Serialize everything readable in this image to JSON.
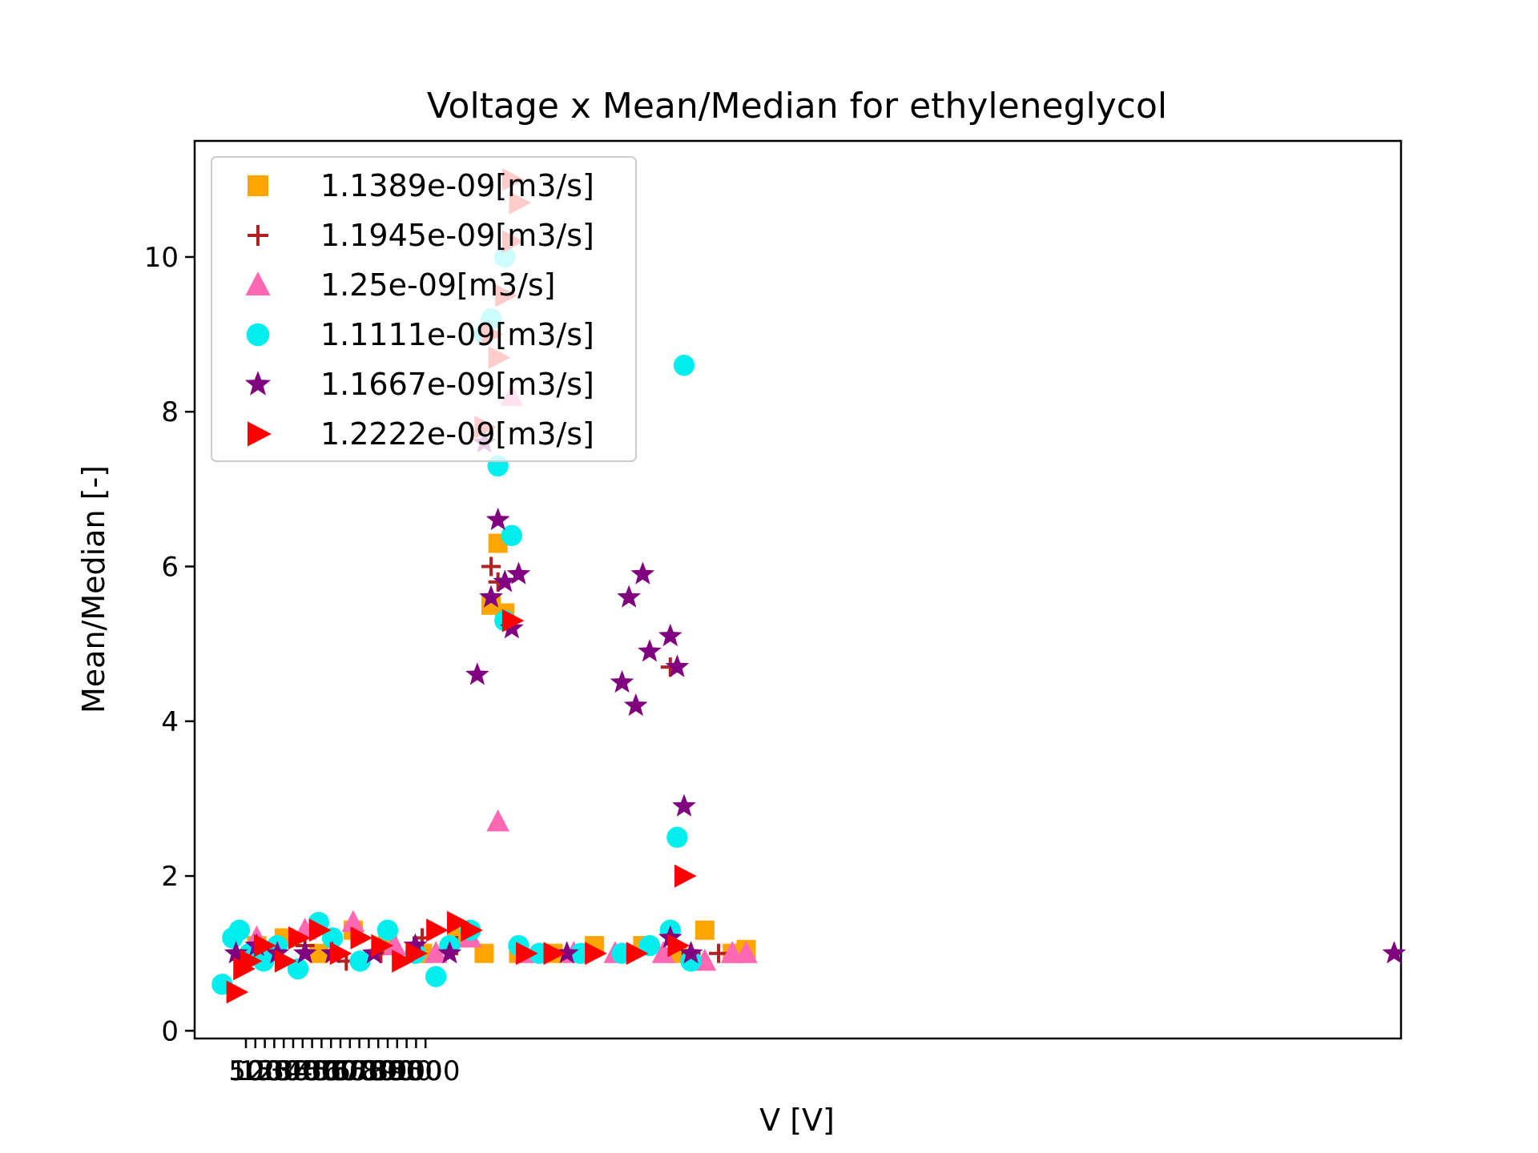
{
  "chart_data": {
    "type": "scatter",
    "title": "Voltage x Mean/Median for ethyleneglycol",
    "xlabel": "V [V]",
    "ylabel": "Mean/Median [-]",
    "xlim": [
      0,
      1750
    ],
    "ylim": [
      -0.1,
      11.5
    ],
    "x_tick_labels": [
      "50",
      "100",
      "150",
      "200",
      "250",
      "300",
      "350",
      "400",
      "450",
      "500",
      "550",
      "600",
      "650",
      "700",
      "750",
      "800",
      "850",
      "900",
      "950",
      "1000"
    ],
    "y_ticks": [
      0,
      2,
      4,
      6,
      8,
      10
    ],
    "legend_position": "upper-left",
    "grid": false,
    "series": [
      {
        "name": "1.1389e-09[m3/s]",
        "marker": "square",
        "color": "#ffa500",
        "points": [
          [
            90,
            1.1
          ],
          [
            130,
            1.2
          ],
          [
            180,
            1.0
          ],
          [
            230,
            1.3
          ],
          [
            280,
            1.1
          ],
          [
            330,
            1.0
          ],
          [
            380,
            1.2
          ],
          [
            420,
            1.0
          ],
          [
            430,
            5.5
          ],
          [
            440,
            6.3
          ],
          [
            450,
            5.4
          ],
          [
            470,
            1.0
          ],
          [
            520,
            1.0
          ],
          [
            580,
            1.1
          ],
          [
            650,
            1.1
          ],
          [
            700,
            1.0
          ],
          [
            740,
            1.3
          ],
          [
            780,
            1.0
          ],
          [
            800,
            1.05
          ]
        ]
      },
      {
        "name": "1.1945e-09[m3/s]",
        "marker": "plus",
        "color": "#b22222",
        "points": [
          [
            100,
            1.0
          ],
          [
            160,
            1.1
          ],
          [
            220,
            0.9
          ],
          [
            270,
            1.0
          ],
          [
            330,
            1.2
          ],
          [
            380,
            1.1
          ],
          [
            430,
            6.0
          ],
          [
            440,
            5.8
          ],
          [
            500,
            1.0
          ],
          [
            560,
            1.0
          ],
          [
            620,
            1.0
          ],
          [
            690,
            4.7
          ],
          [
            720,
            1.0
          ],
          [
            760,
            1.0
          ]
        ]
      },
      {
        "name": "1.25e-09[m3/s]",
        "marker": "triangle-up",
        "color": "#ff69b4",
        "points": [
          [
            90,
            1.2
          ],
          [
            160,
            1.3
          ],
          [
            230,
            1.4
          ],
          [
            290,
            1.1
          ],
          [
            350,
            1.0
          ],
          [
            400,
            1.2
          ],
          [
            440,
            2.7
          ],
          [
            460,
            8.2
          ],
          [
            480,
            1.0
          ],
          [
            550,
            1.0
          ],
          [
            610,
            1.0
          ],
          [
            680,
            1.0
          ],
          [
            740,
            0.9
          ],
          [
            780,
            1.0
          ],
          [
            800,
            1.0
          ]
        ]
      },
      {
        "name": "1.1111e-09[m3/s]",
        "marker": "circle",
        "color": "#00eeee",
        "points": [
          [
            40,
            0.6
          ],
          [
            55,
            1.2
          ],
          [
            65,
            1.3
          ],
          [
            80,
            1.0
          ],
          [
            100,
            0.9
          ],
          [
            120,
            1.1
          ],
          [
            150,
            0.8
          ],
          [
            180,
            1.4
          ],
          [
            200,
            1.2
          ],
          [
            240,
            0.9
          ],
          [
            280,
            1.3
          ],
          [
            320,
            1.0
          ],
          [
            350,
            0.7
          ],
          [
            370,
            1.1
          ],
          [
            400,
            1.3
          ],
          [
            420,
            9.0
          ],
          [
            430,
            9.2
          ],
          [
            440,
            7.3
          ],
          [
            450,
            10.0
          ],
          [
            460,
            6.4
          ],
          [
            450,
            5.3
          ],
          [
            470,
            1.1
          ],
          [
            500,
            1.0
          ],
          [
            560,
            1.0
          ],
          [
            620,
            1.0
          ],
          [
            660,
            1.1
          ],
          [
            690,
            1.3
          ],
          [
            700,
            2.5
          ],
          [
            710,
            8.6
          ],
          [
            720,
            0.9
          ]
        ]
      },
      {
        "name": "1.1667e-09[m3/s]",
        "marker": "star",
        "color": "#800080",
        "points": [
          [
            60,
            1.0
          ],
          [
            90,
            1.1
          ],
          [
            120,
            1.0
          ],
          [
            160,
            1.0
          ],
          [
            200,
            1.0
          ],
          [
            260,
            1.0
          ],
          [
            320,
            1.1
          ],
          [
            370,
            1.0
          ],
          [
            410,
            4.6
          ],
          [
            420,
            7.6
          ],
          [
            430,
            5.6
          ],
          [
            440,
            6.6
          ],
          [
            450,
            5.8
          ],
          [
            460,
            5.2
          ],
          [
            470,
            5.9
          ],
          [
            540,
            1.0
          ],
          [
            620,
            4.5
          ],
          [
            630,
            5.6
          ],
          [
            640,
            4.2
          ],
          [
            650,
            5.9
          ],
          [
            660,
            4.9
          ],
          [
            690,
            5.1
          ],
          [
            700,
            4.7
          ],
          [
            710,
            2.9
          ],
          [
            690,
            1.2
          ],
          [
            720,
            1.0
          ],
          [
            1740,
            1.0
          ]
        ]
      },
      {
        "name": "1.2222e-09[m3/s]",
        "marker": "triangle-right",
        "color": "#ff0000",
        "points": [
          [
            60,
            0.5
          ],
          [
            70,
            0.8
          ],
          [
            80,
            0.9
          ],
          [
            100,
            1.1
          ],
          [
            130,
            0.9
          ],
          [
            150,
            1.2
          ],
          [
            180,
            1.3
          ],
          [
            210,
            1.0
          ],
          [
            240,
            1.2
          ],
          [
            270,
            1.1
          ],
          [
            300,
            0.9
          ],
          [
            320,
            1.0
          ],
          [
            350,
            1.3
          ],
          [
            380,
            1.4
          ],
          [
            400,
            1.3
          ],
          [
            420,
            7.8
          ],
          [
            430,
            9.0
          ],
          [
            440,
            8.7
          ],
          [
            450,
            9.5
          ],
          [
            460,
            10.2
          ],
          [
            470,
            10.7
          ],
          [
            460,
            11.0
          ],
          [
            460,
            5.3
          ],
          [
            480,
            1.0
          ],
          [
            520,
            1.0
          ],
          [
            580,
            1.0
          ],
          [
            640,
            1.0
          ],
          [
            700,
            1.1
          ],
          [
            710,
            2.0
          ]
        ]
      }
    ]
  }
}
